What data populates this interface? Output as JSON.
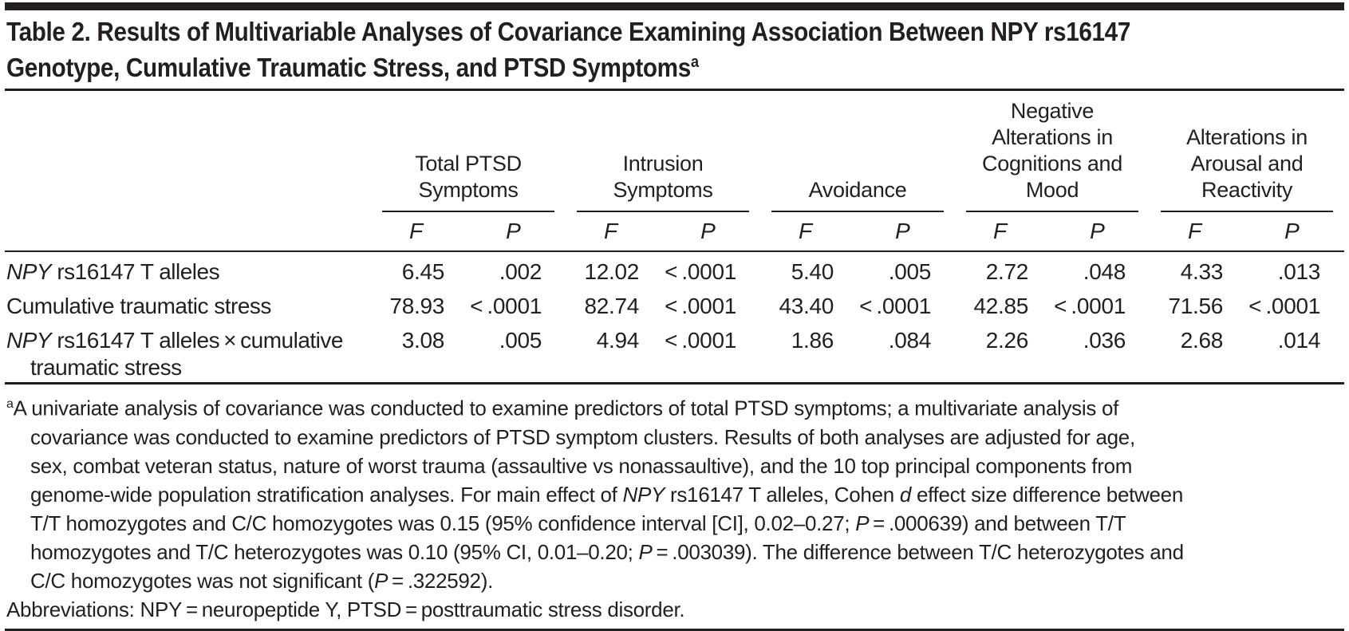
{
  "colors": {
    "text": "#231f20",
    "rule": "#231f20",
    "background": "#ffffff"
  },
  "title": {
    "line1": "Table 2. Results of Multivariable Analyses of Covariance Examining Association Between NPY rs16147",
    "line2": [
      {
        "t": "Genotype, Cumulative Traumatic Stress, and PTSD Symptoms"
      },
      {
        "t": "a",
        "sup": true
      }
    ]
  },
  "columns": {
    "stat_headers": [
      "F",
      "P"
    ],
    "groups": [
      {
        "label": [
          {
            "t": "Total PTSD"
          },
          {
            "br": true
          },
          {
            "t": "Symptoms"
          }
        ]
      },
      {
        "label": [
          {
            "t": "Intrusion"
          },
          {
            "br": true
          },
          {
            "t": "Symptoms"
          }
        ]
      },
      {
        "label": [
          {
            "t": "Avoidance"
          }
        ]
      },
      {
        "label": [
          {
            "t": "Negative"
          },
          {
            "br": true
          },
          {
            "t": "Alterations in"
          },
          {
            "br": true
          },
          {
            "t": "Cognitions and"
          },
          {
            "br": true
          },
          {
            "t": "Mood"
          }
        ]
      },
      {
        "label": [
          {
            "t": "Alterations in"
          },
          {
            "br": true
          },
          {
            "t": "Arousal and"
          },
          {
            "br": true
          },
          {
            "t": "Reactivity"
          }
        ]
      }
    ]
  },
  "rows": [
    {
      "label": [
        {
          "t": "NPY",
          "i": true
        },
        {
          "t": " rs16147 T alleles"
        }
      ],
      "values": [
        "6.45",
        ".002",
        "12.02",
        "< .0001",
        "5.40",
        ".005",
        "2.72",
        ".048",
        "4.33",
        ".013"
      ]
    },
    {
      "label": [
        {
          "t": "Cumulative traumatic stress"
        }
      ],
      "values": [
        "78.93",
        "< .0001",
        "82.74",
        "< .0001",
        "43.40",
        "< .0001",
        "42.85",
        "< .0001",
        "71.56",
        "< .0001"
      ]
    },
    {
      "label": [
        {
          "t": "NPY",
          "i": true
        },
        {
          "t": " rs16147 T alleles × cumulative"
        }
      ],
      "label_line2": "traumatic stress",
      "values": [
        "3.08",
        ".005",
        "4.94",
        "< .0001",
        "1.86",
        ".084",
        "2.26",
        ".036",
        "2.68",
        ".014"
      ]
    }
  ],
  "footnotes": {
    "lines": [
      [
        {
          "t": "a",
          "sup": true
        },
        {
          "t": "A univariate analysis of covariance was conducted to examine predictors of total PTSD symptoms; a multivariate analysis of"
        }
      ],
      [
        {
          "t": "covariance was conducted to examine predictors of PTSD symptom clusters. Results of both analyses are adjusted for age,"
        }
      ],
      [
        {
          "t": "sex, combat veteran status, nature of worst trauma (assaultive vs nonassaultive), and the 10 top principal components from"
        }
      ],
      [
        {
          "t": "genome-wide population stratification analyses. For main effect of "
        },
        {
          "t": "NPY",
          "i": true
        },
        {
          "t": " rs16147 T alleles, Cohen "
        },
        {
          "t": "d",
          "i": true
        },
        {
          "t": " effect size difference between"
        }
      ],
      [
        {
          "t": "T/T homozygotes and C/C homozygotes was 0.15 (95% confidence interval [CI], 0.02–0.27; "
        },
        {
          "t": "P",
          "i": true
        },
        {
          "t": " = .000639) and between T/T"
        }
      ],
      [
        {
          "t": "homozygotes and T/C heterozygotes was 0.10 (95% CI, 0.01–0.20; "
        },
        {
          "t": "P",
          "i": true
        },
        {
          "t": " = .003039). The difference between T/C heterozygotes and"
        }
      ],
      [
        {
          "t": "C/C homozygotes was not significant ("
        },
        {
          "t": "P",
          "i": true
        },
        {
          "t": " = .322592)."
        }
      ],
      [
        {
          "t": "Abbreviations: NPY = neuropeptide Y, PTSD = posttraumatic stress disorder."
        }
      ]
    ]
  }
}
